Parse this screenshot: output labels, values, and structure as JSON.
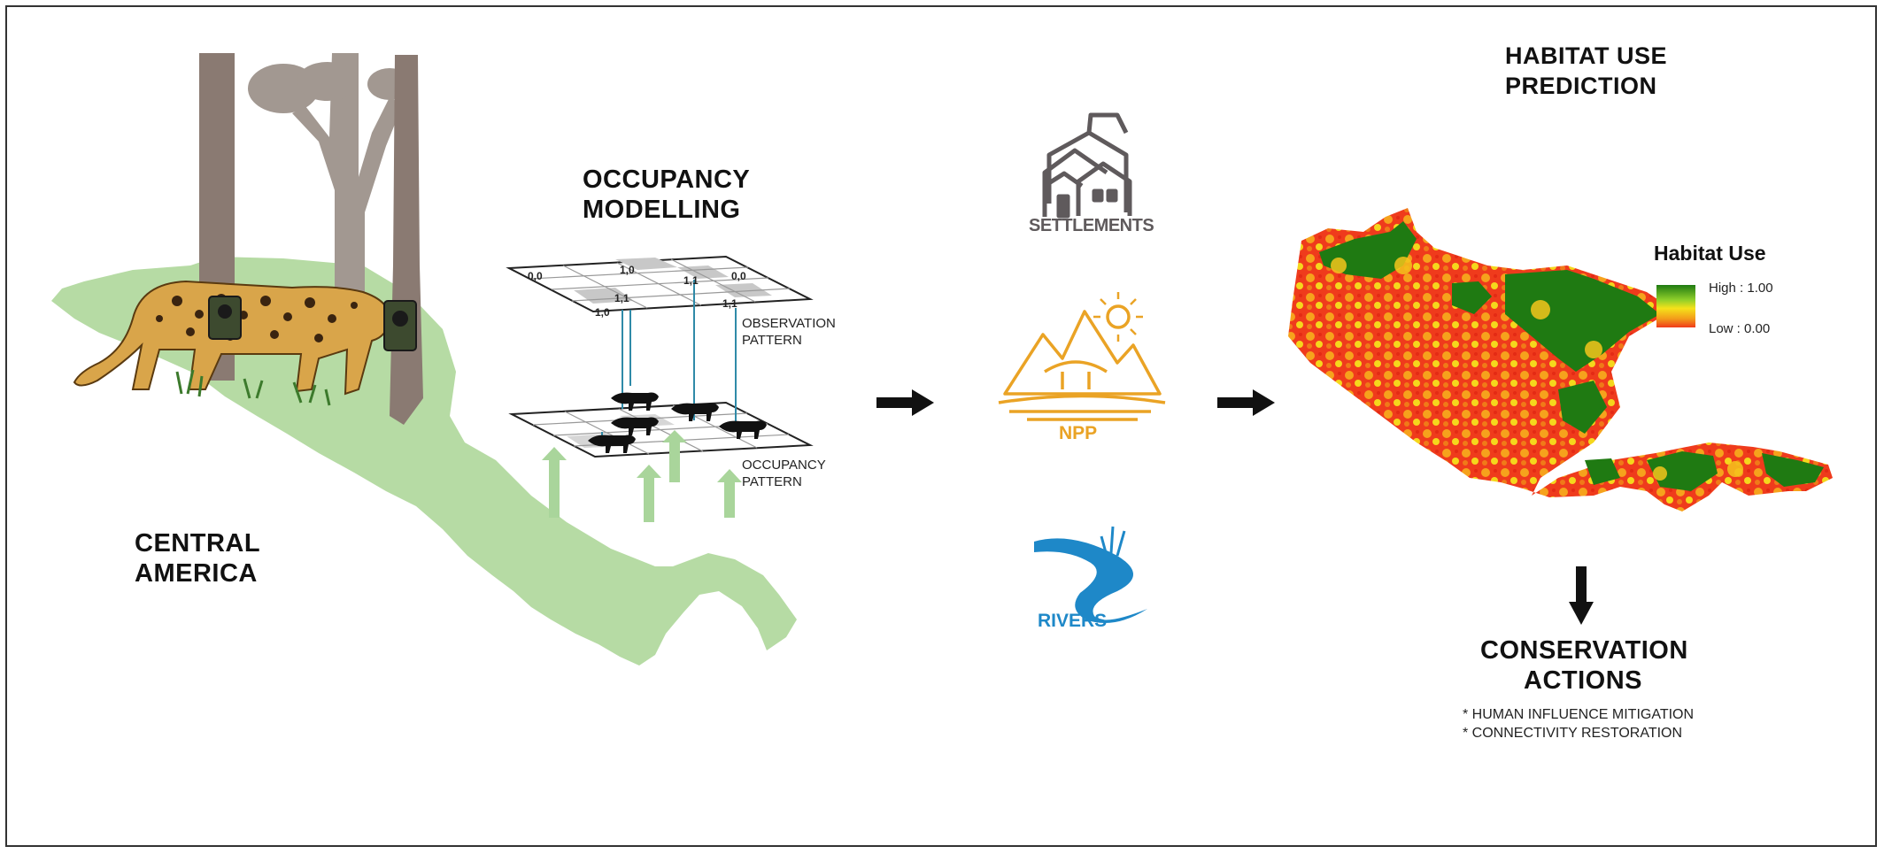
{
  "region": {
    "title_line1": "CENTRAL",
    "title_line2": "AMERICA"
  },
  "occupancy": {
    "title_line1": "OCCUPANCY",
    "title_line2": "MODELLING",
    "obs_line1": "OBSERVATION",
    "obs_line2": "PATTERN",
    "occ_line1": "OCCUPANCY",
    "occ_line2": "PATTERN",
    "cells": [
      "0,0",
      "1,0",
      "1,1",
      "0,0",
      "1,1",
      "1,1",
      "1,0"
    ]
  },
  "covariates": {
    "settlements": "SETTLEMENTS",
    "npp": "NPP",
    "rivers": "RIVERS"
  },
  "prediction": {
    "title_line1": "HABITAT USE",
    "title_line2": "PREDICTION",
    "legend_title": "Habitat Use",
    "legend_high": "High : 1.00",
    "legend_low": "Low : 0.00"
  },
  "conservation": {
    "title_line1": "CONSERVATION",
    "title_line2": "ACTIONS",
    "item1": "* HUMAN INFLUENCE MITIGATION",
    "item2": "* CONNECTIVITY RESTORATION"
  },
  "colors": {
    "map_green": "#b6dba4",
    "tree_brown": "#8a7a72",
    "npp_orange": "#eaa325",
    "river_blue": "#1e88c8",
    "settlement_gray": "#5f5a5c",
    "habitat_high": "#1f7a12",
    "habitat_low": "#f03a1a"
  },
  "icons": [
    "tree-icon",
    "jaguar-icon",
    "camera-trap-icon",
    "settlements-icon",
    "npp-icon",
    "rivers-icon",
    "arrow-right-icon",
    "arrow-down-icon"
  ]
}
